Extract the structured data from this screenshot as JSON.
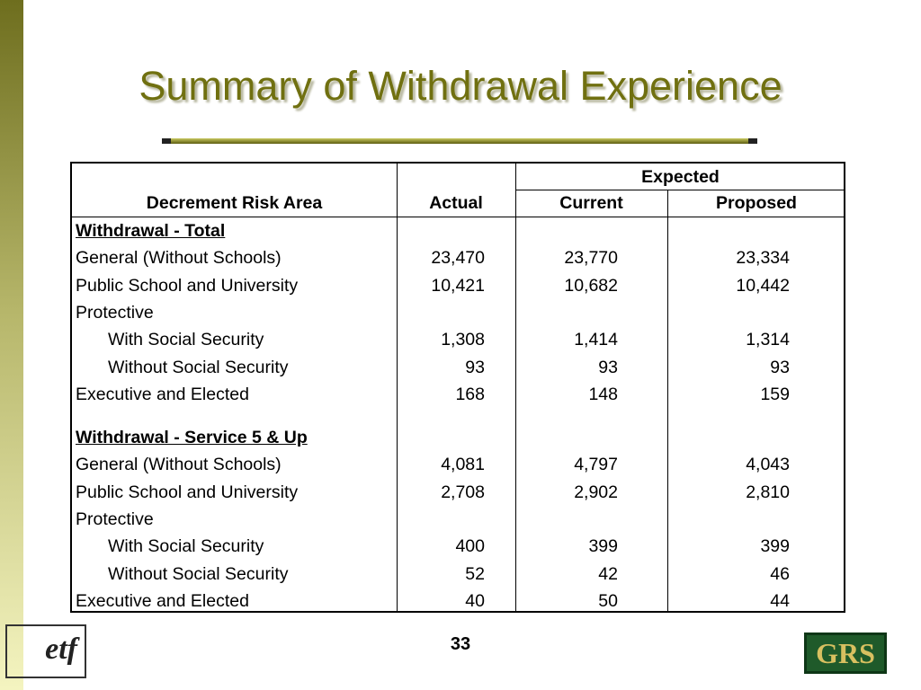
{
  "title": "Summary of Withdrawal Experience",
  "table": {
    "group_header": "Expected",
    "headers": [
      "Decrement Risk Area",
      "Actual",
      "Current",
      "Proposed"
    ],
    "sections": [
      {
        "title": "Withdrawal - Total",
        "rows": [
          {
            "label": "General (Without Schools)",
            "values": [
              "23,470",
              "23,770",
              "23,334"
            ]
          },
          {
            "label": "Public School and University",
            "values": [
              "10,421",
              "10,682",
              "10,442"
            ]
          },
          {
            "label": "Protective"
          },
          {
            "label": "With Social Security",
            "indent": true,
            "values": [
              "1,308",
              "1,414",
              "1,314"
            ]
          },
          {
            "label": "Without Social Security",
            "indent": true,
            "values": [
              "93",
              "93",
              "93"
            ]
          },
          {
            "label": "Executive and Elected",
            "values": [
              "168",
              "148",
              "159"
            ]
          }
        ]
      },
      {
        "title": "Withdrawal - Service 5 & Up",
        "rows": [
          {
            "label": "General (Without Schools)",
            "values": [
              "4,081",
              "4,797",
              "4,043"
            ]
          },
          {
            "label": "Public School and University",
            "values": [
              "2,708",
              "2,902",
              "2,810"
            ]
          },
          {
            "label": "Protective"
          },
          {
            "label": "With Social Security",
            "indent": true,
            "values": [
              "400",
              "399",
              "399"
            ]
          },
          {
            "label": "Without Social Security",
            "indent": true,
            "values": [
              "52",
              "42",
              "46"
            ]
          },
          {
            "label": "Executive and Elected",
            "values": [
              "40",
              "50",
              "44"
            ]
          }
        ]
      }
    ]
  },
  "page_number": "33",
  "logos": {
    "left": "etf",
    "right": "GRS"
  }
}
